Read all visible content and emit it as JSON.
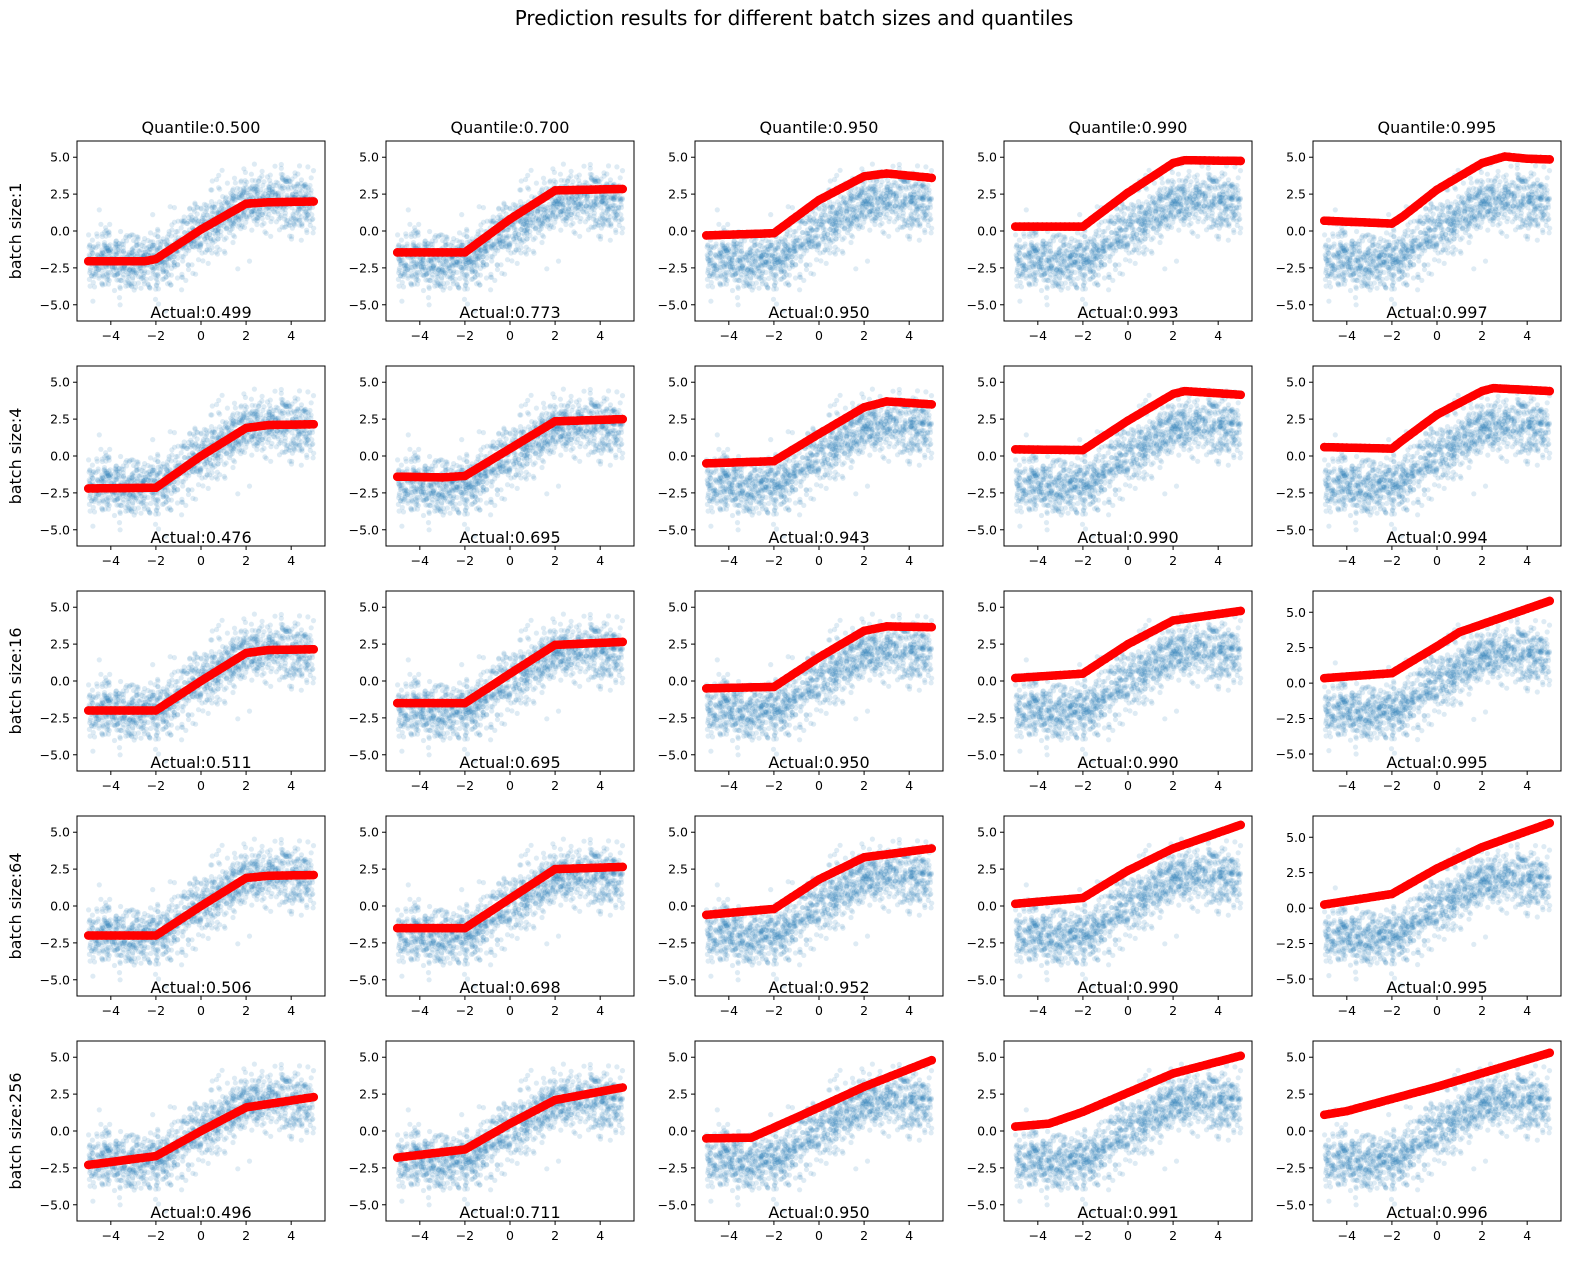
{
  "chart_data": {
    "type": "scatter",
    "title": "Prediction results for different batch sizes and quantiles",
    "layout": "grid-5x5",
    "columns": [
      "Quantile:0.500",
      "Quantile:0.700",
      "Quantile:0.950",
      "Quantile:0.990",
      "Quantile:0.995"
    ],
    "quantiles": [
      0.5,
      0.7,
      0.95,
      0.99,
      0.995
    ],
    "rows": [
      "batch size:1",
      "batch size:4",
      "batch size:16",
      "batch size:64",
      "batch size:256"
    ],
    "batch_sizes": [
      1,
      4,
      16,
      64,
      256
    ],
    "xlim": [
      -5.5,
      5.5
    ],
    "ylim_default": [
      -6.1,
      6.1
    ],
    "xticks": [
      -4,
      -2,
      0,
      2,
      4
    ],
    "xtick_labels": [
      "−4",
      "−2",
      "0",
      "2",
      "4"
    ],
    "yticks": [
      -5.0,
      -2.5,
      0.0,
      2.5,
      5.0
    ],
    "ytick_labels": [
      "−5.0",
      "−2.5",
      "0.0",
      "2.5",
      "5.0"
    ],
    "scatter_series": {
      "name": "observations",
      "color": "#1f77b4",
      "alpha": 0.15,
      "x_range": [
        -5,
        5
      ],
      "underlying_trend": {
        "x": [
          -5,
          -2,
          2,
          5
        ],
        "y": [
          -2,
          -2,
          2,
          2
        ]
      },
      "noise_std": 1.0
    },
    "prediction_color": "#ff0000",
    "panels": [
      [
        {
          "actual": "Actual:0.499",
          "pred_x": [
            -5,
            -2.5,
            -2,
            0,
            2,
            3,
            5
          ],
          "pred_y": [
            -2.05,
            -2.05,
            -1.9,
            0.1,
            1.85,
            1.95,
            2.0
          ]
        },
        {
          "actual": "Actual:0.773",
          "pred_x": [
            -5,
            -2,
            0,
            2,
            5
          ],
          "pred_y": [
            -1.45,
            -1.45,
            0.8,
            2.75,
            2.85
          ]
        },
        {
          "actual": "Actual:0.950",
          "pred_x": [
            -5,
            -2,
            0,
            2,
            3,
            5
          ],
          "pred_y": [
            -0.3,
            -0.15,
            2.1,
            3.7,
            3.9,
            3.6
          ]
        },
        {
          "actual": "Actual:0.993",
          "pred_x": [
            -5,
            -2,
            0,
            2,
            2.5,
            5
          ],
          "pred_y": [
            0.3,
            0.3,
            2.6,
            4.6,
            4.8,
            4.75
          ]
        },
        {
          "actual": "Actual:0.997",
          "pred_x": [
            -5,
            -2,
            -1.5,
            0,
            2,
            3,
            4,
            5
          ],
          "pred_y": [
            0.7,
            0.5,
            1.0,
            2.8,
            4.6,
            5.05,
            4.9,
            4.85
          ]
        }
      ],
      [
        {
          "actual": "Actual:0.476",
          "pred_x": [
            -5,
            -2,
            0,
            2,
            3,
            5
          ],
          "pred_y": [
            -2.2,
            -2.15,
            0.0,
            1.9,
            2.1,
            2.15
          ]
        },
        {
          "actual": "Actual:0.695",
          "pred_x": [
            -5,
            -3,
            -2,
            0,
            2,
            5
          ],
          "pred_y": [
            -1.4,
            -1.45,
            -1.35,
            0.5,
            2.35,
            2.5
          ]
        },
        {
          "actual": "Actual:0.943",
          "pred_x": [
            -5,
            -2,
            0,
            2,
            3,
            5
          ],
          "pred_y": [
            -0.5,
            -0.35,
            1.5,
            3.3,
            3.7,
            3.5
          ]
        },
        {
          "actual": "Actual:0.990",
          "pred_x": [
            -5,
            -2,
            0,
            2,
            2.5,
            5
          ],
          "pred_y": [
            0.45,
            0.4,
            2.4,
            4.2,
            4.4,
            4.15
          ]
        },
        {
          "actual": "Actual:0.994",
          "pred_x": [
            -5,
            -2,
            -1.5,
            0,
            2,
            2.5,
            5
          ],
          "pred_y": [
            0.6,
            0.5,
            1.1,
            2.8,
            4.4,
            4.6,
            4.4
          ]
        }
      ],
      [
        {
          "actual": "Actual:0.511",
          "pred_x": [
            -5,
            -2,
            0,
            2,
            3,
            5
          ],
          "pred_y": [
            -2.0,
            -2.0,
            0.0,
            1.9,
            2.1,
            2.15
          ]
        },
        {
          "actual": "Actual:0.695",
          "pred_x": [
            -5,
            -2,
            0,
            2,
            5
          ],
          "pred_y": [
            -1.5,
            -1.5,
            0.5,
            2.45,
            2.65
          ]
        },
        {
          "actual": "Actual:0.950",
          "pred_x": [
            -5,
            -2,
            0,
            2,
            3,
            5
          ],
          "pred_y": [
            -0.5,
            -0.4,
            1.6,
            3.4,
            3.7,
            3.65
          ]
        },
        {
          "actual": "Actual:0.990",
          "pred_x": [
            -5,
            -2,
            0,
            2,
            5
          ],
          "pred_y": [
            0.2,
            0.5,
            2.5,
            4.1,
            4.75
          ]
        },
        {
          "actual": "Actual:0.995",
          "pred_x": [
            -5,
            -2,
            0,
            1,
            5
          ],
          "pred_y": [
            0.35,
            0.7,
            2.6,
            3.6,
            5.8
          ],
          "ylim": [
            -6.2,
            6.5
          ]
        }
      ],
      [
        {
          "actual": "Actual:0.506",
          "pred_x": [
            -5,
            -2,
            0,
            2,
            3,
            5
          ],
          "pred_y": [
            -2.0,
            -2.0,
            0.0,
            1.9,
            2.05,
            2.1
          ]
        },
        {
          "actual": "Actual:0.698",
          "pred_x": [
            -5,
            -2,
            0,
            2,
            5
          ],
          "pred_y": [
            -1.5,
            -1.5,
            0.5,
            2.5,
            2.65
          ]
        },
        {
          "actual": "Actual:0.952",
          "pred_x": [
            -5,
            -2,
            0,
            2,
            5
          ],
          "pred_y": [
            -0.6,
            -0.2,
            1.8,
            3.3,
            3.9
          ]
        },
        {
          "actual": "Actual:0.990",
          "pred_x": [
            -5,
            -2,
            0,
            2,
            5
          ],
          "pred_y": [
            0.15,
            0.55,
            2.4,
            3.9,
            5.5
          ]
        },
        {
          "actual": "Actual:0.995",
          "pred_x": [
            -5,
            -2,
            0,
            2,
            5
          ],
          "pred_y": [
            0.25,
            1.0,
            2.8,
            4.3,
            6.0
          ],
          "ylim": [
            -6.2,
            6.5
          ]
        }
      ],
      [
        {
          "actual": "Actual:0.496",
          "pred_x": [
            -5,
            -2,
            0,
            2,
            5
          ],
          "pred_y": [
            -2.3,
            -1.7,
            0.0,
            1.6,
            2.3
          ]
        },
        {
          "actual": "Actual:0.711",
          "pred_x": [
            -5,
            -2,
            0,
            2,
            5
          ],
          "pred_y": [
            -1.8,
            -1.25,
            0.5,
            2.1,
            2.95
          ]
        },
        {
          "actual": "Actual:0.950",
          "pred_x": [
            -5,
            -3,
            0,
            2,
            5
          ],
          "pred_y": [
            -0.5,
            -0.45,
            1.6,
            3.0,
            4.8
          ]
        },
        {
          "actual": "Actual:0.991",
          "pred_x": [
            -5,
            -3.5,
            -2,
            0,
            2,
            5
          ],
          "pred_y": [
            0.3,
            0.5,
            1.3,
            2.6,
            3.9,
            5.1
          ]
        },
        {
          "actual": "Actual:0.996",
          "pred_x": [
            -5,
            -4,
            0,
            5
          ],
          "pred_y": [
            1.1,
            1.35,
            3.0,
            5.3
          ]
        }
      ]
    ]
  }
}
